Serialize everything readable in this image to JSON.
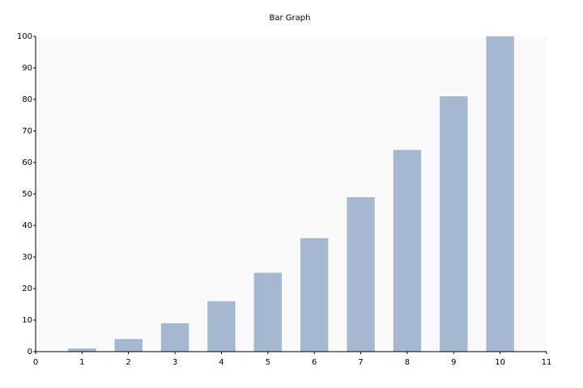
{
  "chart_data": {
    "type": "bar",
    "title": "Bar Graph",
    "x": [
      1,
      2,
      3,
      4,
      5,
      6,
      7,
      8,
      9,
      10
    ],
    "values": [
      1,
      4,
      9,
      16,
      25,
      36,
      49,
      64,
      81,
      100
    ],
    "color": "#a5b8d0",
    "xlim": [
      0,
      11
    ],
    "xticks": [
      0,
      1,
      2,
      3,
      4,
      5,
      6,
      7,
      8,
      9,
      10,
      11
    ],
    "ylim": [
      0,
      100
    ],
    "yticks": [
      0,
      10,
      20,
      30,
      40,
      50,
      60,
      70,
      80,
      90,
      100
    ],
    "grid": false
  }
}
